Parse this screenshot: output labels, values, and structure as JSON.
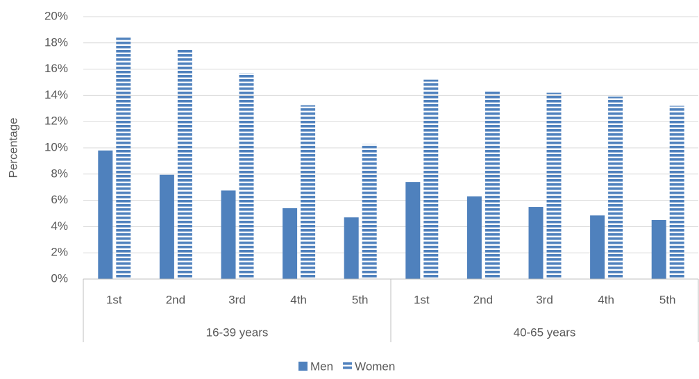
{
  "chart_data": {
    "type": "grouped-bar",
    "y_label": "Percentage",
    "groups": [
      {
        "name": "16-39 years",
        "categories": [
          "1st",
          "2nd",
          "3rd",
          "4th",
          "5th"
        ]
      },
      {
        "name": "40-65 years",
        "categories": [
          "1st",
          "2nd",
          "3rd",
          "4th",
          "5th"
        ]
      }
    ],
    "series": [
      {
        "name": "Men",
        "color": "#4f81bd",
        "pattern": "solid",
        "values": [
          9.8,
          7.95,
          6.75,
          5.4,
          4.7,
          7.4,
          6.3,
          5.5,
          4.85,
          4.5
        ]
      },
      {
        "name": "Women",
        "color": "#4f81bd",
        "pattern": "horizontal-stripes",
        "values": [
          18.4,
          17.5,
          15.7,
          13.25,
          10.3,
          15.2,
          14.3,
          14.2,
          13.9,
          13.2
        ]
      }
    ],
    "ylim": [
      0,
      20
    ],
    "yticks": [
      {
        "value": 0,
        "label": "0%"
      },
      {
        "value": 2,
        "label": "2%"
      },
      {
        "value": 4,
        "label": "4%"
      },
      {
        "value": 6,
        "label": "6%"
      },
      {
        "value": 8,
        "label": "8%"
      },
      {
        "value": 10,
        "label": "10%"
      },
      {
        "value": 12,
        "label": "12%"
      },
      {
        "value": 14,
        "label": "14%"
      },
      {
        "value": 16,
        "label": "16%"
      },
      {
        "value": 18,
        "label": "18%"
      },
      {
        "value": 20,
        "label": "20%"
      }
    ],
    "grid": true,
    "legend": "bottom"
  }
}
